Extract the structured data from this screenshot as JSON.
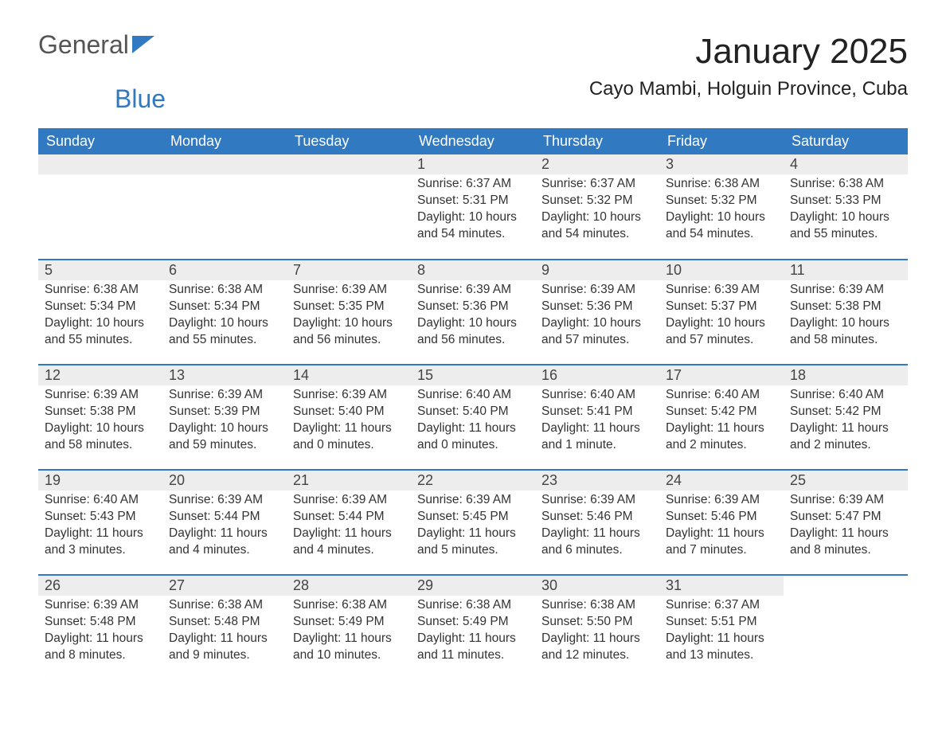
{
  "logo": {
    "text_a": "General",
    "text_b": "Blue"
  },
  "title": "January 2025",
  "subtitle": "Cayo Mambi, Holguin Province, Cuba",
  "colors": {
    "header_blue": "#3179c0",
    "stripe_gray": "#ededed",
    "background": "#ffffff",
    "text": "#333333"
  },
  "weekday_headers": [
    "Sunday",
    "Monday",
    "Tuesday",
    "Wednesday",
    "Thursday",
    "Friday",
    "Saturday"
  ],
  "weeks": [
    [
      {
        "empty": true
      },
      {
        "empty": true
      },
      {
        "empty": true
      },
      {
        "day": "1",
        "sunrise": "Sunrise: 6:37 AM",
        "sunset": "Sunset: 5:31 PM",
        "daylight_a": "Daylight: 10 hours",
        "daylight_b": "and 54 minutes."
      },
      {
        "day": "2",
        "sunrise": "Sunrise: 6:37 AM",
        "sunset": "Sunset: 5:32 PM",
        "daylight_a": "Daylight: 10 hours",
        "daylight_b": "and 54 minutes."
      },
      {
        "day": "3",
        "sunrise": "Sunrise: 6:38 AM",
        "sunset": "Sunset: 5:32 PM",
        "daylight_a": "Daylight: 10 hours",
        "daylight_b": "and 54 minutes."
      },
      {
        "day": "4",
        "sunrise": "Sunrise: 6:38 AM",
        "sunset": "Sunset: 5:33 PM",
        "daylight_a": "Daylight: 10 hours",
        "daylight_b": "and 55 minutes."
      }
    ],
    [
      {
        "day": "5",
        "sunrise": "Sunrise: 6:38 AM",
        "sunset": "Sunset: 5:34 PM",
        "daylight_a": "Daylight: 10 hours",
        "daylight_b": "and 55 minutes."
      },
      {
        "day": "6",
        "sunrise": "Sunrise: 6:38 AM",
        "sunset": "Sunset: 5:34 PM",
        "daylight_a": "Daylight: 10 hours",
        "daylight_b": "and 55 minutes."
      },
      {
        "day": "7",
        "sunrise": "Sunrise: 6:39 AM",
        "sunset": "Sunset: 5:35 PM",
        "daylight_a": "Daylight: 10 hours",
        "daylight_b": "and 56 minutes."
      },
      {
        "day": "8",
        "sunrise": "Sunrise: 6:39 AM",
        "sunset": "Sunset: 5:36 PM",
        "daylight_a": "Daylight: 10 hours",
        "daylight_b": "and 56 minutes."
      },
      {
        "day": "9",
        "sunrise": "Sunrise: 6:39 AM",
        "sunset": "Sunset: 5:36 PM",
        "daylight_a": "Daylight: 10 hours",
        "daylight_b": "and 57 minutes."
      },
      {
        "day": "10",
        "sunrise": "Sunrise: 6:39 AM",
        "sunset": "Sunset: 5:37 PM",
        "daylight_a": "Daylight: 10 hours",
        "daylight_b": "and 57 minutes."
      },
      {
        "day": "11",
        "sunrise": "Sunrise: 6:39 AM",
        "sunset": "Sunset: 5:38 PM",
        "daylight_a": "Daylight: 10 hours",
        "daylight_b": "and 58 minutes."
      }
    ],
    [
      {
        "day": "12",
        "sunrise": "Sunrise: 6:39 AM",
        "sunset": "Sunset: 5:38 PM",
        "daylight_a": "Daylight: 10 hours",
        "daylight_b": "and 58 minutes."
      },
      {
        "day": "13",
        "sunrise": "Sunrise: 6:39 AM",
        "sunset": "Sunset: 5:39 PM",
        "daylight_a": "Daylight: 10 hours",
        "daylight_b": "and 59 minutes."
      },
      {
        "day": "14",
        "sunrise": "Sunrise: 6:39 AM",
        "sunset": "Sunset: 5:40 PM",
        "daylight_a": "Daylight: 11 hours",
        "daylight_b": "and 0 minutes."
      },
      {
        "day": "15",
        "sunrise": "Sunrise: 6:40 AM",
        "sunset": "Sunset: 5:40 PM",
        "daylight_a": "Daylight: 11 hours",
        "daylight_b": "and 0 minutes."
      },
      {
        "day": "16",
        "sunrise": "Sunrise: 6:40 AM",
        "sunset": "Sunset: 5:41 PM",
        "daylight_a": "Daylight: 11 hours",
        "daylight_b": "and 1 minute."
      },
      {
        "day": "17",
        "sunrise": "Sunrise: 6:40 AM",
        "sunset": "Sunset: 5:42 PM",
        "daylight_a": "Daylight: 11 hours",
        "daylight_b": "and 2 minutes."
      },
      {
        "day": "18",
        "sunrise": "Sunrise: 6:40 AM",
        "sunset": "Sunset: 5:42 PM",
        "daylight_a": "Daylight: 11 hours",
        "daylight_b": "and 2 minutes."
      }
    ],
    [
      {
        "day": "19",
        "sunrise": "Sunrise: 6:40 AM",
        "sunset": "Sunset: 5:43 PM",
        "daylight_a": "Daylight: 11 hours",
        "daylight_b": "and 3 minutes."
      },
      {
        "day": "20",
        "sunrise": "Sunrise: 6:39 AM",
        "sunset": "Sunset: 5:44 PM",
        "daylight_a": "Daylight: 11 hours",
        "daylight_b": "and 4 minutes."
      },
      {
        "day": "21",
        "sunrise": "Sunrise: 6:39 AM",
        "sunset": "Sunset: 5:44 PM",
        "daylight_a": "Daylight: 11 hours",
        "daylight_b": "and 4 minutes."
      },
      {
        "day": "22",
        "sunrise": "Sunrise: 6:39 AM",
        "sunset": "Sunset: 5:45 PM",
        "daylight_a": "Daylight: 11 hours",
        "daylight_b": "and 5 minutes."
      },
      {
        "day": "23",
        "sunrise": "Sunrise: 6:39 AM",
        "sunset": "Sunset: 5:46 PM",
        "daylight_a": "Daylight: 11 hours",
        "daylight_b": "and 6 minutes."
      },
      {
        "day": "24",
        "sunrise": "Sunrise: 6:39 AM",
        "sunset": "Sunset: 5:46 PM",
        "daylight_a": "Daylight: 11 hours",
        "daylight_b": "and 7 minutes."
      },
      {
        "day": "25",
        "sunrise": "Sunrise: 6:39 AM",
        "sunset": "Sunset: 5:47 PM",
        "daylight_a": "Daylight: 11 hours",
        "daylight_b": "and 8 minutes."
      }
    ],
    [
      {
        "day": "26",
        "sunrise": "Sunrise: 6:39 AM",
        "sunset": "Sunset: 5:48 PM",
        "daylight_a": "Daylight: 11 hours",
        "daylight_b": "and 8 minutes."
      },
      {
        "day": "27",
        "sunrise": "Sunrise: 6:38 AM",
        "sunset": "Sunset: 5:48 PM",
        "daylight_a": "Daylight: 11 hours",
        "daylight_b": "and 9 minutes."
      },
      {
        "day": "28",
        "sunrise": "Sunrise: 6:38 AM",
        "sunset": "Sunset: 5:49 PM",
        "daylight_a": "Daylight: 11 hours",
        "daylight_b": "and 10 minutes."
      },
      {
        "day": "29",
        "sunrise": "Sunrise: 6:38 AM",
        "sunset": "Sunset: 5:49 PM",
        "daylight_a": "Daylight: 11 hours",
        "daylight_b": "and 11 minutes."
      },
      {
        "day": "30",
        "sunrise": "Sunrise: 6:38 AM",
        "sunset": "Sunset: 5:50 PM",
        "daylight_a": "Daylight: 11 hours",
        "daylight_b": "and 12 minutes."
      },
      {
        "day": "31",
        "sunrise": "Sunrise: 6:37 AM",
        "sunset": "Sunset: 5:51 PM",
        "daylight_a": "Daylight: 11 hours",
        "daylight_b": "and 13 minutes."
      },
      {
        "empty": true
      }
    ]
  ]
}
